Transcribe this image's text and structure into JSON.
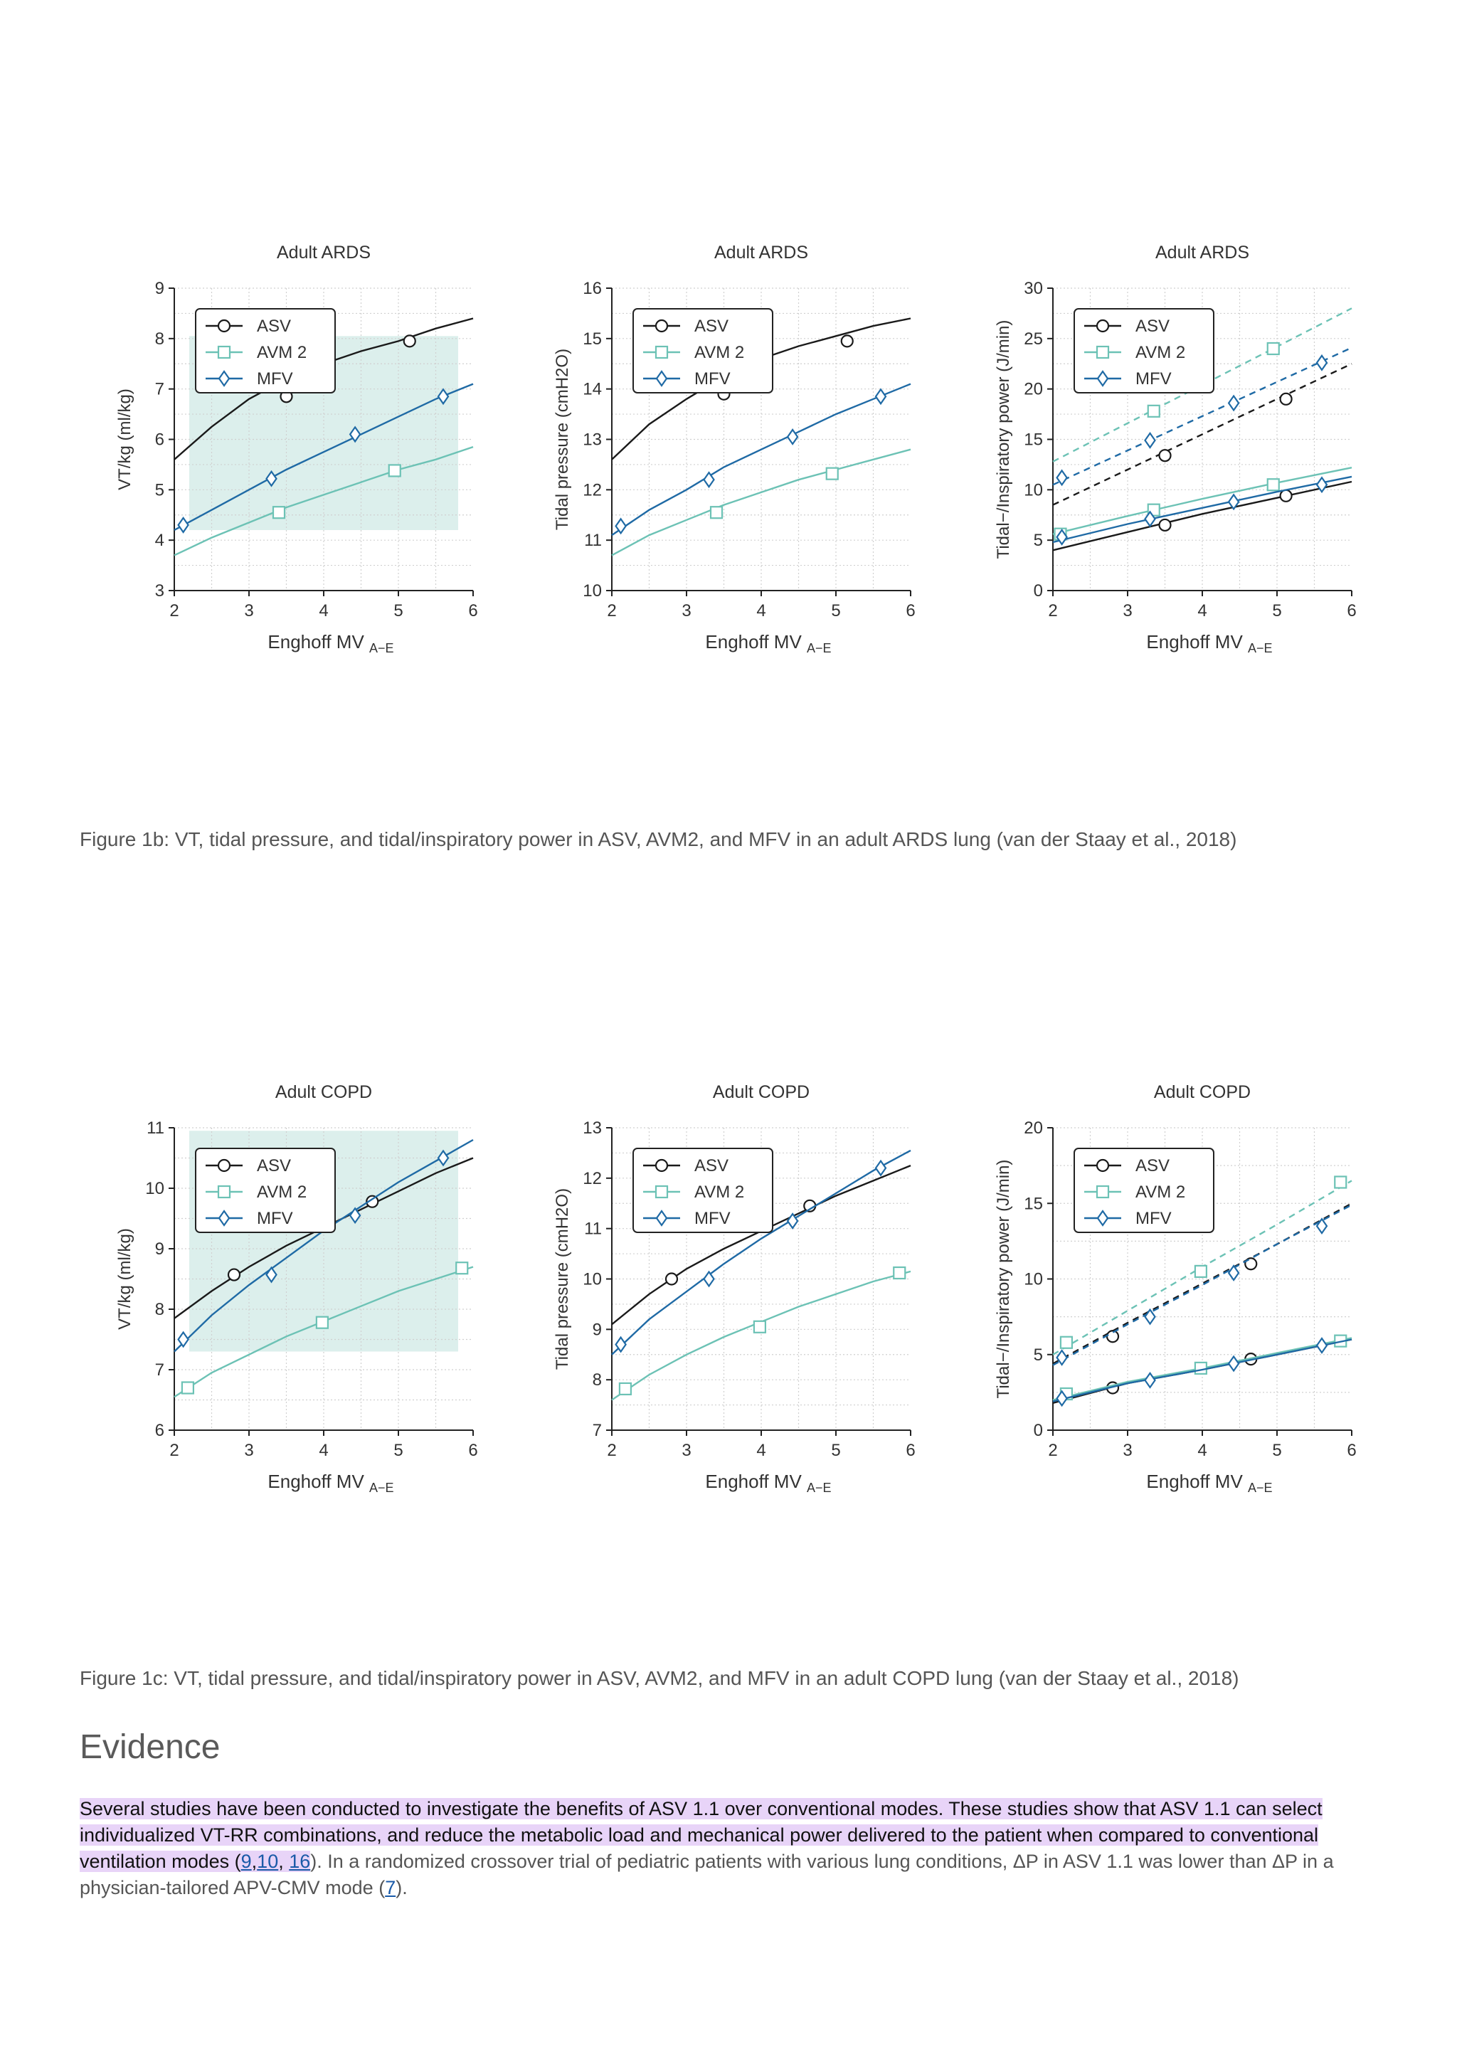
{
  "figure_1b": {
    "caption": "Figure 1b: VT, tidal pressure, and tidal/inspiratory power in ASV, AVM2, and MFV in an adult ARDS lung (van der Staay et al., 2018)"
  },
  "figure_1c": {
    "caption": "Figure 1c: VT, tidal pressure, and tidal/inspiratory power in ASV, AVM2, and MFV in an adult COPD lung (van der Staay et al., 2018)"
  },
  "evidence": {
    "heading": "Evidence",
    "highlighted_a": "Several studies have been conducted to investigate the benefits of ASV 1.1 over conventional modes. These studies show that ASV 1.1 can select individualized VT-RR combinations, and reduce the metabolic load and mechanical power delivered to the patient when compared to conventional ventilation modes (",
    "ref_9": "9",
    "comma1": ",",
    "ref_10": "10",
    "comma2": ", ",
    "ref_16": "16",
    "text_b": "). In a randomized crossover trial of pediatric patients with various lung conditions, ΔP in ASV 1.1 was lower than ΔP in a physician-tailored APV-CMV mode (",
    "ref_7": "7",
    "text_c": ")."
  },
  "colors": {
    "ASV": "#1a1a1a",
    "AVM 2": "#6cc2b5",
    "MFV": "#1f6aa5",
    "target_band": "#dcefec"
  },
  "chart_data": [
    {
      "type": "line",
      "title": "Adult ARDS",
      "xlabel": "Enghoff MV",
      "xlabel_sub": "A−E",
      "ylabel": "VT/kg (ml/kg)",
      "xlim": [
        2,
        6
      ],
      "ylim": [
        3,
        9
      ],
      "xticks": [
        2,
        3,
        4,
        5,
        6
      ],
      "yticks": [
        3,
        4,
        5,
        6,
        7,
        8,
        9
      ],
      "band": {
        "x": [
          2.2,
          5.8
        ],
        "y": [
          4.2,
          8.05
        ]
      },
      "legend": "top-left",
      "grid": true,
      "series": [
        {
          "name": "ASV",
          "marker": "circle",
          "x": [
            2,
            2.5,
            3,
            3.5,
            4,
            4.5,
            5,
            5.5,
            6
          ],
          "y": [
            5.6,
            6.25,
            6.8,
            7.2,
            7.5,
            7.75,
            7.95,
            8.2,
            8.4
          ],
          "markers": [
            [
              3.5,
              6.85
            ],
            [
              5.15,
              7.95
            ]
          ]
        },
        {
          "name": "AVM 2",
          "marker": "square",
          "x": [
            2,
            2.5,
            3,
            3.5,
            4,
            4.5,
            5,
            5.5,
            6
          ],
          "y": [
            3.7,
            4.05,
            4.35,
            4.65,
            4.9,
            5.15,
            5.4,
            5.6,
            5.85
          ],
          "markers": [
            [
              3.4,
              4.55
            ],
            [
              4.95,
              5.38
            ]
          ]
        },
        {
          "name": "MFV",
          "marker": "diamond",
          "x": [
            2,
            2.5,
            3,
            3.5,
            4,
            4.5,
            5,
            5.5,
            6
          ],
          "y": [
            4.2,
            4.6,
            5.0,
            5.4,
            5.75,
            6.1,
            6.45,
            6.8,
            7.1
          ],
          "markers": [
            [
              2.12,
              4.3
            ],
            [
              3.3,
              5.22
            ],
            [
              4.42,
              6.1
            ],
            [
              5.6,
              6.85
            ]
          ]
        }
      ]
    },
    {
      "type": "line",
      "title": "Adult ARDS",
      "xlabel": "Enghoff MV",
      "xlabel_sub": "A−E",
      "ylabel": "Tidal pressure (cmH2O)",
      "xlim": [
        2,
        6
      ],
      "ylim": [
        10,
        16
      ],
      "xticks": [
        2,
        3,
        4,
        5,
        6
      ],
      "yticks": [
        10,
        11,
        12,
        13,
        14,
        15,
        16
      ],
      "legend": "top-left",
      "grid": true,
      "series": [
        {
          "name": "ASV",
          "marker": "circle",
          "x": [
            2,
            2.5,
            3,
            3.5,
            4,
            4.5,
            5,
            5.5,
            6
          ],
          "y": [
            12.6,
            13.3,
            13.8,
            14.25,
            14.6,
            14.85,
            15.05,
            15.25,
            15.4
          ],
          "markers": [
            [
              3.5,
              13.9
            ],
            [
              5.15,
              14.95
            ]
          ]
        },
        {
          "name": "AVM 2",
          "marker": "square",
          "x": [
            2,
            2.5,
            3,
            3.5,
            4,
            4.5,
            5,
            5.5,
            6
          ],
          "y": [
            10.7,
            11.1,
            11.4,
            11.7,
            11.95,
            12.2,
            12.4,
            12.6,
            12.8
          ],
          "markers": [
            [
              3.4,
              11.55
            ],
            [
              4.95,
              12.32
            ]
          ]
        },
        {
          "name": "MFV",
          "marker": "diamond",
          "x": [
            2,
            2.5,
            3,
            3.5,
            4,
            4.5,
            5,
            5.5,
            6
          ],
          "y": [
            11.1,
            11.6,
            12.0,
            12.45,
            12.8,
            13.15,
            13.5,
            13.8,
            14.1
          ],
          "markers": [
            [
              2.12,
              11.28
            ],
            [
              3.3,
              12.2
            ],
            [
              4.42,
              13.05
            ],
            [
              5.6,
              13.85
            ]
          ]
        }
      ]
    },
    {
      "type": "line",
      "title": "Adult ARDS",
      "xlabel": "Enghoff MV",
      "xlabel_sub": "A−E",
      "ylabel": "Tidal−/Inspiratory power (J/min)",
      "xlim": [
        2,
        6
      ],
      "ylim": [
        0,
        30
      ],
      "xticks": [
        2,
        3,
        4,
        5,
        6
      ],
      "yticks": [
        0,
        5,
        10,
        15,
        20,
        25,
        30
      ],
      "legend": "top-left",
      "grid": true,
      "series": [
        {
          "name": "ASV",
          "marker": "circle",
          "x": [
            2,
            3,
            4,
            5,
            6
          ],
          "y": [
            4.0,
            5.8,
            7.6,
            9.2,
            10.8
          ],
          "markers": [
            [
              3.5,
              6.5
            ],
            [
              5.12,
              9.4
            ]
          ]
        },
        {
          "name": "AVM 2",
          "marker": "square",
          "x": [
            2,
            3,
            4,
            5,
            6
          ],
          "y": [
            5.6,
            7.4,
            9.1,
            10.7,
            12.2
          ],
          "markers": [
            [
              2.1,
              5.6
            ],
            [
              3.35,
              8.0
            ],
            [
              4.95,
              10.5
            ]
          ]
        },
        {
          "name": "MFV",
          "marker": "diamond",
          "x": [
            2,
            3,
            4,
            5,
            6
          ],
          "y": [
            4.8,
            6.6,
            8.2,
            9.8,
            11.3
          ],
          "markers": [
            [
              2.12,
              5.3
            ],
            [
              3.3,
              7.1
            ],
            [
              4.42,
              8.8
            ],
            [
              5.6,
              10.5
            ]
          ]
        },
        {
          "name": "",
          "marker": "circle",
          "dashed": true,
          "color_of": "ASV",
          "x": [
            2,
            3,
            4,
            5,
            6
          ],
          "y": [
            8.5,
            12.0,
            15.5,
            19.0,
            22.5
          ],
          "markers": [
            [
              3.5,
              13.4
            ],
            [
              5.12,
              19.0
            ]
          ]
        },
        {
          "name": "",
          "marker": "square",
          "dashed": true,
          "color_of": "AVM 2",
          "x": [
            2,
            3,
            4,
            5,
            6
          ],
          "y": [
            12.8,
            16.6,
            20.4,
            24.2,
            28.0
          ],
          "markers": [
            [
              3.35,
              17.8
            ],
            [
              4.95,
              24.0
            ]
          ]
        },
        {
          "name": "",
          "marker": "diamond",
          "dashed": true,
          "color_of": "MFV",
          "x": [
            2,
            3,
            4,
            5,
            6
          ],
          "y": [
            10.5,
            13.9,
            17.3,
            20.7,
            24.1
          ],
          "markers": [
            [
              2.12,
              11.2
            ],
            [
              3.3,
              14.9
            ],
            [
              4.42,
              18.6
            ],
            [
              5.6,
              22.6
            ]
          ]
        }
      ]
    },
    {
      "type": "line",
      "title": "Adult COPD",
      "xlabel": "Enghoff MV",
      "xlabel_sub": "A−E",
      "ylabel": "VT/kg (ml/kg)",
      "xlim": [
        2,
        6
      ],
      "ylim": [
        6,
        11
      ],
      "xticks": [
        2,
        3,
        4,
        5,
        6
      ],
      "yticks": [
        6,
        7,
        8,
        9,
        10,
        11
      ],
      "band": {
        "x": [
          2.2,
          5.8
        ],
        "y": [
          7.3,
          10.95
        ]
      },
      "legend": "top-left",
      "grid": true,
      "series": [
        {
          "name": "ASV",
          "marker": "circle",
          "x": [
            2,
            2.5,
            3,
            3.5,
            4,
            4.5,
            5,
            5.5,
            6
          ],
          "y": [
            7.85,
            8.3,
            8.7,
            9.05,
            9.35,
            9.65,
            9.95,
            10.25,
            10.5
          ],
          "markers": [
            [
              2.8,
              8.57
            ],
            [
              4.65,
              9.78
            ]
          ]
        },
        {
          "name": "AVM 2",
          "marker": "square",
          "x": [
            2,
            2.5,
            3,
            3.5,
            4,
            4.5,
            5,
            5.5,
            6
          ],
          "y": [
            6.55,
            6.95,
            7.25,
            7.55,
            7.8,
            8.05,
            8.3,
            8.5,
            8.7
          ],
          "markers": [
            [
              2.18,
              6.7
            ],
            [
              3.98,
              7.78
            ],
            [
              5.85,
              8.68
            ]
          ]
        },
        {
          "name": "MFV",
          "marker": "diamond",
          "x": [
            2,
            2.5,
            3,
            3.5,
            4,
            4.5,
            5,
            5.5,
            6
          ],
          "y": [
            7.3,
            7.9,
            8.4,
            8.85,
            9.3,
            9.7,
            10.1,
            10.45,
            10.8
          ],
          "markers": [
            [
              2.12,
              7.5
            ],
            [
              3.3,
              8.57
            ],
            [
              4.42,
              9.55
            ],
            [
              5.6,
              10.5
            ]
          ]
        }
      ]
    },
    {
      "type": "line",
      "title": "Adult COPD",
      "xlabel": "Enghoff MV",
      "xlabel_sub": "A−E",
      "ylabel": "Tidal pressure (cmH2O)",
      "xlim": [
        2,
        6
      ],
      "ylim": [
        7,
        13
      ],
      "xticks": [
        2,
        3,
        4,
        5,
        6
      ],
      "yticks": [
        7,
        8,
        9,
        10,
        11,
        12,
        13
      ],
      "legend": "top-left",
      "grid": true,
      "series": [
        {
          "name": "ASV",
          "marker": "circle",
          "x": [
            2,
            2.5,
            3,
            3.5,
            4,
            4.5,
            5,
            5.5,
            6
          ],
          "y": [
            9.1,
            9.7,
            10.2,
            10.6,
            10.95,
            11.3,
            11.65,
            11.95,
            12.25
          ],
          "markers": [
            [
              2.8,
              10.0
            ],
            [
              4.65,
              11.45
            ]
          ]
        },
        {
          "name": "AVM 2",
          "marker": "square",
          "x": [
            2,
            2.5,
            3,
            3.5,
            4,
            4.5,
            5,
            5.5,
            6
          ],
          "y": [
            7.6,
            8.1,
            8.5,
            8.85,
            9.15,
            9.45,
            9.7,
            9.95,
            10.15
          ],
          "markers": [
            [
              2.18,
              7.82
            ],
            [
              3.98,
              9.05
            ],
            [
              5.85,
              10.12
            ]
          ]
        },
        {
          "name": "MFV",
          "marker": "diamond",
          "x": [
            2,
            2.5,
            3,
            3.5,
            4,
            4.5,
            5,
            5.5,
            6
          ],
          "y": [
            8.5,
            9.2,
            9.75,
            10.3,
            10.8,
            11.25,
            11.7,
            12.15,
            12.55
          ],
          "markers": [
            [
              2.12,
              8.7
            ],
            [
              3.3,
              10.0
            ],
            [
              4.42,
              11.15
            ],
            [
              5.6,
              12.2
            ]
          ]
        }
      ]
    },
    {
      "type": "line",
      "title": "Adult COPD",
      "xlabel": "Enghoff MV",
      "xlabel_sub": "A−E",
      "ylabel": "Tidal−/Inspiratory power (J/min)",
      "xlim": [
        2,
        6
      ],
      "ylim": [
        0,
        20
      ],
      "xticks": [
        2,
        3,
        4,
        5,
        6
      ],
      "yticks": [
        0,
        5,
        10,
        15,
        20
      ],
      "legend": "top-left",
      "grid": true,
      "series": [
        {
          "name": "ASV",
          "marker": "circle",
          "x": [
            2,
            3,
            4,
            5,
            6
          ],
          "y": [
            1.8,
            3.1,
            4.0,
            5.0,
            6.0
          ],
          "markers": [
            [
              2.8,
              2.8
            ],
            [
              4.65,
              4.7
            ]
          ]
        },
        {
          "name": "AVM 2",
          "marker": "square",
          "x": [
            2,
            3,
            4,
            5,
            6
          ],
          "y": [
            2.0,
            3.2,
            4.1,
            5.1,
            6.1
          ],
          "markers": [
            [
              2.18,
              2.4
            ],
            [
              3.98,
              4.1
            ],
            [
              5.85,
              5.9
            ]
          ]
        },
        {
          "name": "MFV",
          "marker": "diamond",
          "x": [
            2,
            3,
            4,
            5,
            6
          ],
          "y": [
            1.9,
            3.1,
            4.0,
            5.0,
            6.0
          ],
          "markers": [
            [
              2.12,
              2.1
            ],
            [
              3.3,
              3.3
            ],
            [
              4.42,
              4.4
            ],
            [
              5.6,
              5.6
            ]
          ]
        },
        {
          "name": "",
          "marker": "circle",
          "dashed": true,
          "color_of": "ASV",
          "x": [
            2,
            3,
            4,
            5,
            6
          ],
          "y": [
            4.4,
            7.1,
            9.7,
            12.3,
            15.0
          ],
          "markers": [
            [
              2.8,
              6.2
            ],
            [
              4.65,
              11.0
            ]
          ]
        },
        {
          "name": "",
          "marker": "square",
          "dashed": true,
          "color_of": "AVM 2",
          "x": [
            2,
            3,
            4,
            5,
            6
          ],
          "y": [
            5.0,
            7.9,
            10.8,
            13.6,
            16.5
          ],
          "markers": [
            [
              2.18,
              5.8
            ],
            [
              3.98,
              10.5
            ],
            [
              5.85,
              16.4
            ]
          ]
        },
        {
          "name": "",
          "marker": "diamond",
          "dashed": true,
          "color_of": "MFV",
          "x": [
            2,
            3,
            4,
            5,
            6
          ],
          "y": [
            4.3,
            7.0,
            9.6,
            12.3,
            14.9
          ],
          "markers": [
            [
              2.12,
              4.8
            ],
            [
              3.3,
              7.5
            ],
            [
              4.42,
              10.4
            ],
            [
              5.6,
              13.5
            ]
          ]
        }
      ]
    }
  ]
}
